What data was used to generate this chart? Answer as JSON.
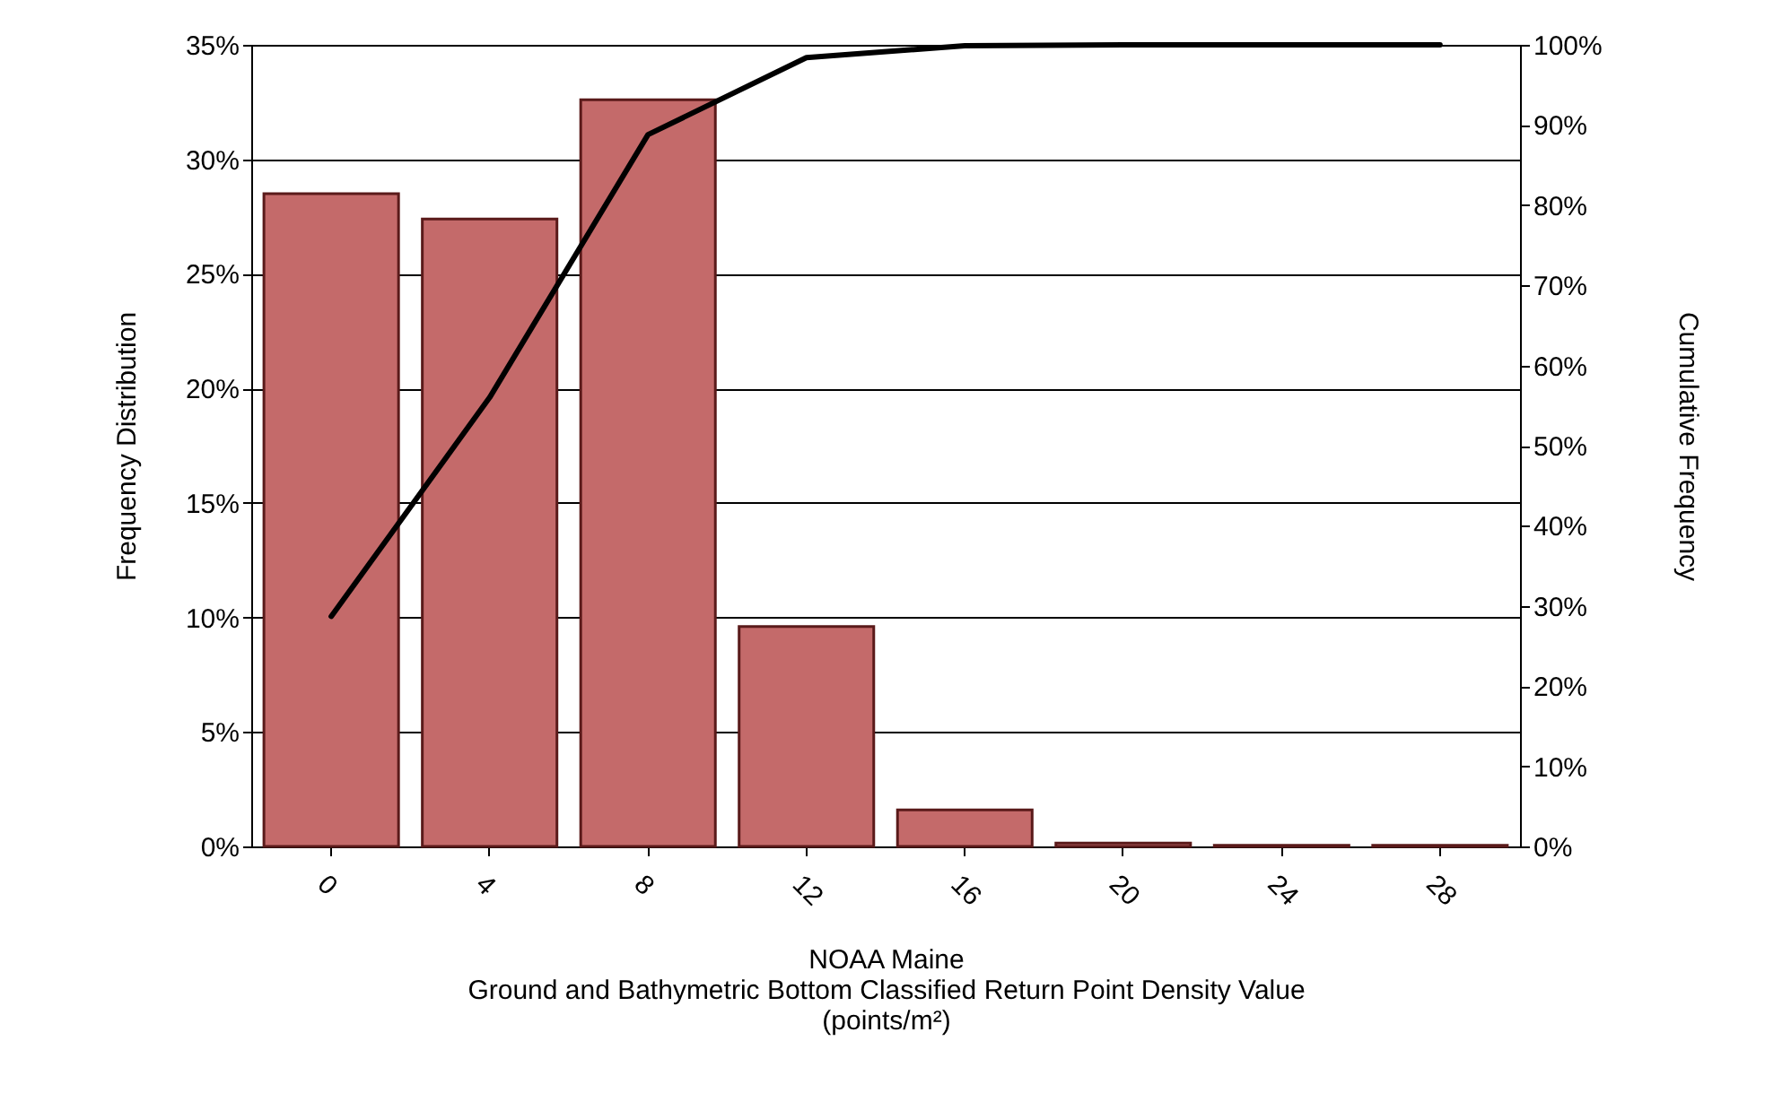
{
  "chart_data": {
    "type": "bar",
    "xlabel": "NOAA Maine\nGround and Bathymetric Bottom Classified Return Point Density Value\n(points/m²)",
    "ylabel": "Frequency Distribution",
    "y2label": "Cumulative Frequency",
    "categories": [
      "0",
      "4",
      "8",
      "12",
      "16",
      "20",
      "24",
      "28"
    ],
    "series": [
      {
        "color": "#c46a6a",
        "values": [
          28.5,
          27.4,
          32.6,
          9.6,
          1.6,
          0.15,
          0.05,
          0.05
        ]
      },
      {
        "type": "line",
        "axis": "y2",
        "color": "#000000",
        "values": [
          28.7,
          56,
          88.8,
          98.4,
          99.9,
          100,
          100,
          100
        ]
      }
    ],
    "ylim": [
      0,
      35
    ],
    "yticks": [
      {
        "value": 0,
        "label": "0%"
      },
      {
        "value": 5,
        "label": "5%"
      },
      {
        "value": 10,
        "label": "10%"
      },
      {
        "value": 15,
        "label": "15%"
      },
      {
        "value": 20,
        "label": "20%"
      },
      {
        "value": 25,
        "label": "25%"
      },
      {
        "value": 30,
        "label": "30%"
      },
      {
        "value": 35,
        "label": "35%"
      }
    ],
    "y2lim": [
      0,
      100
    ],
    "y2ticks": [
      {
        "value": 0,
        "label": "0%"
      },
      {
        "value": 10,
        "label": "10%"
      },
      {
        "value": 20,
        "label": "20%"
      },
      {
        "value": 30,
        "label": "30%"
      },
      {
        "value": 40,
        "label": "40%"
      },
      {
        "value": 50,
        "label": "50%"
      },
      {
        "value": 60,
        "label": "60%"
      },
      {
        "value": 70,
        "label": "70%"
      },
      {
        "value": 80,
        "label": "80%"
      },
      {
        "value": 90,
        "label": "90%"
      },
      {
        "value": 100,
        "label": "100%"
      }
    ],
    "grid": "y",
    "marker": "none",
    "line_style": "solid"
  }
}
